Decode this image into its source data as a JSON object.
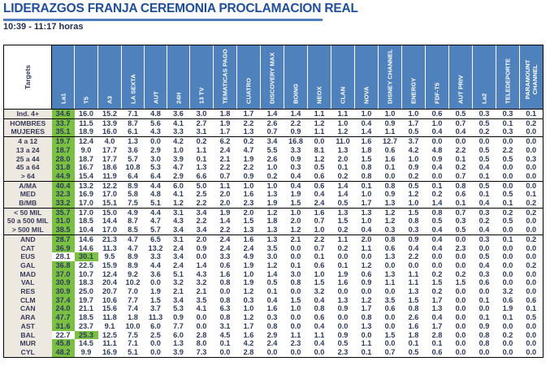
{
  "header": {
    "title": "LIDERAZGOS FRANJA CEREMONIA PROCLAMACION REAL",
    "subtitle": "10:39 - 11:17 horas"
  },
  "colors": {
    "title": "#1f4e9c",
    "header_bg": "#4f81bd",
    "label_bg": "#ede9e0",
    "leader_bg": "#7ac143"
  },
  "table": {
    "target_header": "Targets",
    "columns": [
      "La1",
      "T5",
      "A3",
      "LA SEXTA",
      "AUT",
      "24H",
      "13 TV",
      "TEMATICAS PAGO",
      "CUATRO",
      "DISCOVERY MAX",
      "BOING",
      "NEOX",
      "CLAN",
      "NOVA",
      "DISNEY CHANNEL",
      "ENERGY",
      "FDF-T5",
      "AUT PRIV",
      "La2",
      "TELEDEPORTE",
      "PARAMOUNT CHANNEL"
    ],
    "groups": [
      {
        "rows": [
          {
            "label": "Ind. 4+",
            "leader": 0,
            "values": [
              "34.6",
              "16.0",
              "15.2",
              "7.1",
              "4.8",
              "3.6",
              "3.0",
              "1.8",
              "1.7",
              "1.4",
              "1.4",
              "1.1",
              "1.1",
              "1.0",
              "1.0",
              "1.0",
              "0.6",
              "0.5",
              "0.3",
              "0.3",
              "0.1"
            ]
          }
        ]
      },
      {
        "rows": [
          {
            "label": "HOMBRES",
            "leader": 0,
            "values": [
              "33.7",
              "11.5",
              "13.9",
              "8.7",
              "5.6",
              "4.1",
              "2.7",
              "1.9",
              "2.2",
              "2.6",
              "2.2",
              "1.2",
              "1.0",
              "0.4",
              "0.9",
              "1.7",
              "1.0",
              "0.7",
              "0.5",
              "0.1",
              "0.2"
            ]
          },
          {
            "label": "MUJERES",
            "leader": 0,
            "values": [
              "35.1",
              "18.9",
              "16.0",
              "6.1",
              "4.3",
              "3.3",
              "3.1",
              "1.7",
              "1.3",
              "0.7",
              "0.9",
              "1.1",
              "1.2",
              "1.4",
              "1.1",
              "0.5",
              "0.4",
              "0.4",
              "0.2",
              "0.3",
              "0.0"
            ]
          }
        ]
      },
      {
        "rows": [
          {
            "label": "4 a 12",
            "leader": 0,
            "values": [
              "19.7",
              "12.4",
              "4.0",
              "1.3",
              "0.0",
              "4.2",
              "0.2",
              "6.2",
              "0.2",
              "3.4",
              "16.8",
              "0.0",
              "11.0",
              "1.6",
              "12.7",
              "3.7",
              "0.0",
              "0.0",
              "0.0",
              "0.0",
              "0.0"
            ]
          },
          {
            "label": "13 a 24",
            "leader": 0,
            "values": [
              "18.7",
              "9.0",
              "17.7",
              "3.6",
              "2.9",
              "1.0",
              "1.1",
              "2.4",
              "4.7",
              "5.5",
              "3.3",
              "8.1",
              "1.3",
              "1.8",
              "0.6",
              "4.2",
              "4.8",
              "2.2",
              "0.5",
              "2.2",
              "0.0"
            ]
          },
          {
            "label": "25 a 44",
            "leader": 0,
            "values": [
              "28.0",
              "18.7",
              "17.7",
              "5.7",
              "3.0",
              "3.9",
              "0.1",
              "2.1",
              "1.9",
              "2.6",
              "0.9",
              "1.2",
              "2.0",
              "1.5",
              "1.6",
              "1.0",
              "0.9",
              "0.1",
              "0.5",
              "0.5",
              "0.3"
            ]
          },
          {
            "label": "45 a 64",
            "leader": 0,
            "values": [
              "31.8",
              "16.7",
              "18.6",
              "10.8",
              "5.3",
              "4.7",
              "1.3",
              "2.2",
              "2.2",
              "1.0",
              "0.3",
              "0.5",
              "0.1",
              "0.8",
              "0.1",
              "0.9",
              "0.4",
              "0.2",
              "0.4",
              "0.0",
              "0.0"
            ]
          },
          {
            "label": "> 64",
            "leader": 0,
            "values": [
              "44.9",
              "15.4",
              "11.9",
              "6.4",
              "6.4",
              "2.9",
              "6.6",
              "0.7",
              "0.9",
              "0.2",
              "0.4",
              "0.6",
              "0.2",
              "0.8",
              "0.0",
              "0.2",
              "0.0",
              "0.7",
              "0.1",
              "0.0",
              "0.0"
            ]
          }
        ]
      },
      {
        "rows": [
          {
            "label": "A/MA",
            "leader": 0,
            "values": [
              "40.4",
              "13.2",
              "12.2",
              "8.9",
              "4.4",
              "6.0",
              "5.0",
              "1.1",
              "1.0",
              "1.0",
              "0.4",
              "0.6",
              "1.4",
              "0.1",
              "0.8",
              "0.5",
              "0.1",
              "0.8",
              "0.5",
              "0.0",
              "0.0"
            ]
          },
          {
            "label": "MED",
            "leader": 0,
            "values": [
              "32.3",
              "16.9",
              "17.0",
              "5.8",
              "4.8",
              "4.1",
              "2.5",
              "2.0",
              "1.6",
              "1.3",
              "1.9",
              "0.4",
              "1.4",
              "1.0",
              "0.9",
              "1.2",
              "0.2",
              "0.6",
              "0.1",
              "0.5",
              "0.1"
            ]
          },
          {
            "label": "B/MB",
            "leader": 0,
            "values": [
              "33.2",
              "17.0",
              "15.1",
              "7.5",
              "5.1",
              "1.2",
              "2.2",
              "2.0",
              "2.3",
              "1.9",
              "1.5",
              "2.4",
              "0.5",
              "1.7",
              "1.3",
              "1.0",
              "1.4",
              "0.1",
              "0.4",
              "0.1",
              "0.2"
            ]
          }
        ]
      },
      {
        "rows": [
          {
            "label": "< 50 MIL",
            "leader": 0,
            "values": [
              "35.7",
              "17.0",
              "15.0",
              "4.9",
              "4.4",
              "3.1",
              "3.4",
              "1.9",
              "2.0",
              "1.2",
              "1.0",
              "1.6",
              "1.3",
              "1.3",
              "1.2",
              "1.5",
              "0.8",
              "0.7",
              "0.3",
              "0.2",
              "0.2"
            ]
          },
          {
            "label": "50 a 500 MIL",
            "leader": 0,
            "values": [
              "31.0",
              "18.5",
              "14.4",
              "8.7",
              "4.7",
              "4.3",
              "2.2",
              "1.4",
              "1.5",
              "1.8",
              "2.0",
              "0.7",
              "1.5",
              "1.0",
              "1.2",
              "0.8",
              "0.5",
              "0.3",
              "0.2",
              "0.5",
              "0.0"
            ]
          },
          {
            "label": "> 500 MIL",
            "leader": 0,
            "values": [
              "38.5",
              "10.4",
              "17.0",
              "8.5",
              "5.7",
              "3.4",
              "3.4",
              "2.2",
              "1.3",
              "1.3",
              "1.2",
              "1.0",
              "0.2",
              "0.4",
              "0.3",
              "0.3",
              "0.4",
              "0.5",
              "0.4",
              "0.0",
              "0.0"
            ]
          }
        ]
      },
      {
        "rows": [
          {
            "label": "AND",
            "leader": 0,
            "values": [
              "28.7",
              "14.6",
              "21.3",
              "4.7",
              "6.5",
              "3.1",
              "2.0",
              "2.4",
              "1.6",
              "1.3",
              "2.1",
              "2.2",
              "1.1",
              "2.0",
              "0.8",
              "0.9",
              "0.4",
              "0.0",
              "0.3",
              "0.1",
              "0.2"
            ]
          },
          {
            "label": "CAT",
            "leader": 0,
            "values": [
              "36.9",
              "14.6",
              "11.3",
              "4.7",
              "13.2",
              "2.4",
              "0.9",
              "2.4",
              "2.4",
              "3.5",
              "0.0",
              "0.7",
              "0.2",
              "1.1",
              "0.6",
              "0.4",
              "0.4",
              "2.3",
              "0.0",
              "0.0",
              "0.0"
            ]
          },
          {
            "label": "EUS",
            "leader": 1,
            "values": [
              "28.1",
              "30.1",
              "9.5",
              "8.9",
              "3.3",
              "3.4",
              "0.0",
              "3.3",
              "4.9",
              "3.0",
              "0.0",
              "0.1",
              "0.0",
              "0.0",
              "1.3",
              "2.2",
              "0.0",
              "0.0",
              "0.5",
              "0.0",
              "0.0"
            ]
          },
          {
            "label": "GAL",
            "leader": 0,
            "values": [
              "36.8",
              "22.5",
              "15.9",
              "8.9",
              "4.4",
              "2.4",
              "1.4",
              "0.6",
              "1.9",
              "1.2",
              "0.1",
              "0.6",
              "0.1",
              "1.2",
              "0.0",
              "0.0",
              "0.0",
              "0.0",
              "0.4",
              "0.0",
              "0.2"
            ]
          },
          {
            "label": "MAD",
            "leader": 0,
            "values": [
              "37.0",
              "10.7",
              "12.4",
              "9.2",
              "3.6",
              "5.1",
              "4.3",
              "1.6",
              "1.0",
              "1.4",
              "3.0",
              "1.0",
              "1.9",
              "0.6",
              "1.3",
              "1.1",
              "0.2",
              "0.2",
              "0.3",
              "0.0",
              "0.0"
            ]
          },
          {
            "label": "VAL",
            "leader": 0,
            "values": [
              "30.9",
              "18.3",
              "20.4",
              "10.2",
              "0.0",
              "3.2",
              "3.2",
              "0.8",
              "1.9",
              "0.5",
              "0.8",
              "1.5",
              "1.6",
              "0.9",
              "1.1",
              "1.1",
              "1.5",
              "1.5",
              "0.6",
              "0.0",
              "0.0"
            ]
          },
          {
            "label": "RES",
            "leader": 0,
            "values": [
              "30.9",
              "25.0",
              "20.7",
              "7.0",
              "1.9",
              "2.1",
              "2.1",
              "0.0",
              "1.2",
              "0.1",
              "0.0",
              "3.2",
              "0.0",
              "0.0",
              "0.0",
              "1.3",
              "0.2",
              "0.0",
              "0.0",
              "3.2",
              "0.0"
            ]
          },
          {
            "label": "CLM",
            "leader": 0,
            "values": [
              "37.4",
              "19.7",
              "10.6",
              "7.7",
              "1.5",
              "3.4",
              "3.5",
              "0.8",
              "0.3",
              "0.4",
              "1.5",
              "0.4",
              "1.3",
              "1.2",
              "3.5",
              "1.5",
              "1.7",
              "0.0",
              "0.1",
              "0.6",
              "0.6"
            ]
          },
          {
            "label": "CAN",
            "leader": 0,
            "values": [
              "24.0",
              "21.1",
              "15.6",
              "7.4",
              "3.7",
              "5.3",
              "4.1",
              "6.3",
              "1.0",
              "1.6",
              "1.0",
              "0.8",
              "0.9",
              "1.7",
              "0.6",
              "0.8",
              "1.3",
              "0.0",
              "0.0",
              "1.9",
              "0.1"
            ]
          },
          {
            "label": "ARA",
            "leader": 0,
            "values": [
              "47.7",
              "18.5",
              "11.8",
              "1.8",
              "11.3",
              "0.9",
              "0.0",
              "0.8",
              "1.2",
              "0.3",
              "0.0",
              "0.6",
              "0.0",
              "0.8",
              "0.0",
              "2.6",
              "0.4",
              "0.0",
              "0.1",
              "0.1",
              "0.5"
            ]
          },
          {
            "label": "AST",
            "leader": 0,
            "values": [
              "31.6",
              "23.7",
              "9.1",
              "10.0",
              "6.0",
              "7.7",
              "0.0",
              "3.1",
              "1.7",
              "0.8",
              "0.0",
              "0.4",
              "0.0",
              "1.3",
              "0.0",
              "1.6",
              "1.7",
              "0.0",
              "0.9",
              "0.0",
              "0.0"
            ]
          },
          {
            "label": "BAL",
            "leader": 1,
            "values": [
              "22.7",
              "25.3",
              "12.5",
              "7.5",
              "2.5",
              "6.0",
              "2.8",
              "4.5",
              "1.6",
              "2.9",
              "1.1",
              "1.1",
              "0.9",
              "0.0",
              "1.5",
              "1.8",
              "2.8",
              "0.0",
              "0.8",
              "0.2",
              "0.0"
            ]
          },
          {
            "label": "MUR",
            "leader": 0,
            "values": [
              "45.8",
              "14.5",
              "11.1",
              "7.1",
              "0.0",
              "1.3",
              "8.0",
              "0.1",
              "4.2",
              "2.4",
              "2.3",
              "0.4",
              "0.5",
              "1.1",
              "0.0",
              "0.1",
              "0.1",
              "0.0",
              "0.8",
              "0.0",
              "0.0"
            ]
          },
          {
            "label": "CYL",
            "leader": 0,
            "values": [
              "48.2",
              "9.9",
              "16.9",
              "5.1",
              "0.0",
              "3.9",
              "7.3",
              "0.0",
              "2.8",
              "0.0",
              "0.0",
              "0.0",
              "2.3",
              "0.1",
              "0.7",
              "0.5",
              "0.6",
              "0.0",
              "0.0",
              "0.0",
              "0.0"
            ]
          }
        ]
      }
    ]
  }
}
